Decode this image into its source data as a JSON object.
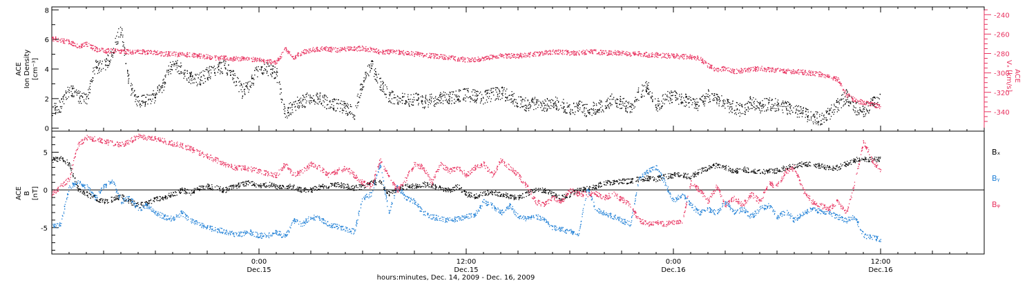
{
  "colors": {
    "black": "#000000",
    "pink": "#e8305e",
    "blue": "#1e7fd6",
    "axis": "#000000"
  },
  "footer": {
    "xlabel": "hours:minutes, Dec. 14, 2009 - Dec. 16, 2009",
    "ticks": [
      {
        "hour": 24,
        "time": "0:00",
        "date": "Dec.15"
      },
      {
        "hour": 36,
        "time": "12:00",
        "date": "Dec.15"
      },
      {
        "hour": 48,
        "time": "0:00",
        "date": "Dec.16"
      },
      {
        "hour": 60,
        "time": "12:00",
        "date": "Dec.16"
      }
    ]
  },
  "chart_data": [
    {
      "type": "scatter",
      "panel": "top",
      "xlim": [
        12.0,
        66.0
      ],
      "ylabel_left": [
        "ACE",
        "Ion Density",
        "[cm⁻³]"
      ],
      "ylabel_right": [
        "ACE",
        "Vₓ [km/s]"
      ],
      "ylim_left": [
        -0.2,
        8.2
      ],
      "ylim_right": [
        -360,
        -232
      ],
      "yticks_left": [
        "0",
        "2",
        "4",
        "6",
        "8"
      ],
      "yticks_right": [
        "-240",
        "-260",
        "-280",
        "-300",
        "-320",
        "-340"
      ],
      "grid": false,
      "series": [
        {
          "key": "density",
          "axis": "left",
          "color": "#000000",
          "x": [
            12.0,
            12.5,
            13.0,
            13.5,
            14.0,
            14.5,
            15.0,
            15.5,
            16.0,
            16.5,
            17.0,
            17.5,
            18.0,
            18.5,
            19.0,
            19.5,
            20.0,
            20.5,
            21.0,
            21.5,
            22.0,
            22.5,
            23.0,
            23.5,
            24.0,
            24.5,
            25.0,
            25.5,
            26.0,
            26.5,
            27.0,
            27.5,
            28.0,
            28.5,
            29.0,
            29.5,
            30.0,
            30.5,
            31.0,
            31.5,
            32.0,
            32.5,
            33.0,
            33.5,
            34.0,
            34.5,
            35.0,
            35.5,
            36.0,
            36.5,
            37.0,
            37.5,
            38.0,
            38.5,
            39.0,
            39.5,
            40.0,
            40.5,
            41.0,
            41.5,
            42.0,
            42.5,
            43.0,
            43.5,
            44.0,
            44.5,
            45.0,
            45.5,
            46.0,
            46.5,
            47.0,
            47.5,
            48.0,
            48.5,
            49.0,
            49.5,
            50.0,
            50.5,
            51.0,
            51.5,
            52.0,
            52.5,
            53.0,
            53.5,
            54.0,
            54.5,
            55.0,
            55.5,
            56.0,
            56.5,
            57.0,
            57.5,
            58.0,
            58.5,
            59.0,
            59.5,
            60.0
          ],
          "y": [
            1.2,
            1.5,
            2.6,
            2.2,
            2.0,
            4.2,
            4.1,
            5.2,
            6.8,
            2.8,
            1.8,
            1.9,
            2.2,
            3.1,
            4.5,
            4.0,
            3.4,
            3.3,
            3.7,
            4.0,
            4.2,
            3.6,
            2.5,
            3.0,
            4.2,
            4.0,
            3.7,
            1.0,
            1.6,
            1.8,
            2.1,
            2.0,
            1.7,
            1.6,
            1.4,
            1.0,
            3.2,
            4.3,
            3.0,
            2.2,
            2.0,
            1.9,
            2.0,
            1.8,
            1.9,
            2.0,
            2.1,
            2.2,
            2.3,
            2.2,
            2.1,
            2.3,
            2.4,
            2.2,
            1.8,
            1.6,
            1.7,
            1.5,
            1.8,
            1.6,
            1.3,
            1.5,
            1.2,
            1.4,
            1.6,
            2.0,
            1.7,
            1.4,
            2.4,
            2.8,
            1.5,
            2.0,
            2.2,
            2.0,
            1.8,
            1.6,
            2.2,
            2.0,
            1.6,
            1.4,
            1.2,
            1.8,
            1.5,
            1.7,
            1.6,
            1.4,
            1.2,
            1.0,
            0.8,
            0.6,
            1.0,
            1.6,
            2.2,
            1.4,
            1.2,
            1.7,
            2.1
          ]
        },
        {
          "key": "vx",
          "axis": "right",
          "color": "#e8305e",
          "x": [
            12.0,
            12.5,
            13.0,
            13.5,
            14.0,
            14.5,
            15.0,
            15.5,
            16.0,
            16.5,
            17.0,
            17.5,
            18.0,
            18.5,
            19.0,
            19.5,
            20.0,
            20.5,
            21.0,
            21.5,
            22.0,
            22.5,
            23.0,
            23.5,
            24.0,
            24.5,
            25.0,
            25.5,
            26.0,
            26.5,
            27.0,
            27.5,
            28.0,
            28.5,
            29.0,
            29.5,
            30.0,
            30.5,
            31.0,
            31.5,
            32.0,
            32.5,
            33.0,
            33.5,
            34.0,
            34.5,
            35.0,
            35.5,
            36.0,
            36.5,
            37.0,
            37.5,
            38.0,
            38.5,
            39.0,
            39.5,
            40.0,
            40.5,
            41.0,
            41.5,
            42.0,
            42.5,
            43.0,
            43.5,
            44.0,
            44.5,
            45.0,
            45.5,
            46.0,
            46.5,
            47.0,
            47.5,
            48.0,
            48.5,
            49.0,
            49.5,
            50.0,
            50.5,
            51.0,
            51.5,
            52.0,
            52.5,
            53.0,
            53.5,
            54.0,
            54.5,
            55.0,
            55.5,
            56.0,
            56.5,
            57.0,
            57.5,
            58.0,
            58.5,
            59.0,
            59.5,
            60.0
          ],
          "y": [
            -264,
            -266,
            -268,
            -272,
            -270,
            -275,
            -277,
            -277,
            -277,
            -278,
            -278,
            -278,
            -279,
            -280,
            -280,
            -281,
            -281,
            -282,
            -283,
            -284,
            -284,
            -285,
            -285,
            -286,
            -286,
            -288,
            -289,
            -275,
            -284,
            -278,
            -276,
            -275,
            -275,
            -276,
            -275,
            -275,
            -274,
            -276,
            -278,
            -278,
            -278,
            -279,
            -280,
            -281,
            -282,
            -283,
            -284,
            -285,
            -286,
            -286,
            -285,
            -283,
            -282,
            -282,
            -282,
            -281,
            -280,
            -279,
            -278,
            -278,
            -279,
            -279,
            -278,
            -278,
            -279,
            -279,
            -279,
            -280,
            -280,
            -281,
            -281,
            -282,
            -282,
            -283,
            -283,
            -285,
            -292,
            -297,
            -295,
            -298,
            -297,
            -296,
            -295,
            -296,
            -297,
            -298,
            -298,
            -299,
            -300,
            -301,
            -303,
            -306,
            -322,
            -328,
            -330,
            -332,
            -335
          ]
        }
      ]
    },
    {
      "type": "scatter",
      "panel": "bottom",
      "xlim": [
        12.0,
        66.0
      ],
      "ylabel_left": [
        "ACE",
        "B",
        "[nT]"
      ],
      "ylim": [
        -8.5,
        7.8
      ],
      "yticks": [
        "5",
        "0",
        "-5"
      ],
      "zero_line": true,
      "grid": false,
      "legend_position": "right",
      "series": [
        {
          "name": "Bₓ",
          "key": "bx",
          "color": "#000000",
          "x": [
            12.0,
            12.5,
            13.0,
            13.5,
            14.0,
            14.5,
            15.0,
            15.5,
            16.0,
            16.5,
            17.0,
            17.5,
            18.0,
            18.5,
            19.0,
            19.5,
            20.0,
            20.5,
            21.0,
            21.5,
            22.0,
            22.5,
            23.0,
            23.5,
            24.0,
            24.5,
            25.0,
            25.5,
            26.0,
            26.5,
            27.0,
            27.5,
            28.0,
            28.5,
            29.0,
            29.5,
            30.0,
            30.5,
            31.0,
            31.5,
            32.0,
            32.5,
            33.0,
            33.5,
            34.0,
            34.5,
            35.0,
            35.5,
            36.0,
            36.5,
            37.0,
            37.5,
            38.0,
            38.5,
            39.0,
            39.5,
            40.0,
            40.5,
            41.0,
            41.5,
            42.0,
            42.5,
            43.0,
            43.5,
            44.0,
            44.5,
            45.0,
            45.5,
            46.0,
            46.5,
            47.0,
            47.5,
            48.0,
            48.5,
            49.0,
            49.5,
            50.0,
            50.5,
            51.0,
            51.5,
            52.0,
            52.5,
            53.0,
            53.5,
            54.0,
            54.5,
            55.0,
            55.5,
            56.0,
            56.5,
            57.0,
            57.5,
            58.0,
            58.5,
            59.0,
            59.5,
            60.0
          ],
          "y": [
            4.0,
            4.2,
            3.5,
            0.2,
            -0.5,
            -1.0,
            -1.5,
            -1.2,
            -0.8,
            -1.5,
            -2.0,
            -1.8,
            -1.2,
            -1.0,
            -0.5,
            0.0,
            -0.3,
            0.2,
            0.5,
            0.3,
            0.0,
            0.5,
            0.8,
            1.0,
            0.6,
            0.8,
            0.5,
            0.6,
            0.4,
            0.0,
            0.0,
            0.4,
            0.6,
            0.8,
            0.5,
            0.3,
            0.5,
            1.2,
            1.0,
            -0.5,
            0.2,
            0.5,
            0.5,
            0.8,
            0.6,
            0.2,
            0.0,
            0.5,
            -0.5,
            -0.8,
            -0.4,
            -0.3,
            -0.5,
            -0.8,
            -1.0,
            -0.5,
            0.2,
            0.0,
            -0.5,
            -1.0,
            -0.6,
            0.0,
            0.3,
            0.5,
            1.0,
            1.0,
            1.2,
            1.2,
            1.5,
            1.6,
            1.5,
            1.8,
            2.0,
            2.0,
            1.8,
            2.5,
            3.0,
            3.3,
            3.0,
            2.5,
            2.8,
            2.6,
            2.5,
            2.5,
            2.6,
            3.0,
            3.2,
            3.5,
            3.5,
            3.2,
            3.0,
            3.0,
            3.5,
            4.0,
            4.2,
            4.0,
            4.2
          ]
        },
        {
          "name": "Bᵧ",
          "key": "by",
          "color": "#1e7fd6",
          "x": [
            12.0,
            12.5,
            13.0,
            13.5,
            14.0,
            14.5,
            15.0,
            15.5,
            16.0,
            16.5,
            17.0,
            17.5,
            18.0,
            18.5,
            19.0,
            19.5,
            20.0,
            20.5,
            21.0,
            21.5,
            22.0,
            22.5,
            23.0,
            23.5,
            24.0,
            24.5,
            25.0,
            25.5,
            26.0,
            26.5,
            27.0,
            27.5,
            28.0,
            28.5,
            29.0,
            29.5,
            30.0,
            30.5,
            31.0,
            31.5,
            32.0,
            32.5,
            33.0,
            33.5,
            34.0,
            34.5,
            35.0,
            35.5,
            36.0,
            36.5,
            37.0,
            37.5,
            38.0,
            38.5,
            39.0,
            39.5,
            40.0,
            40.5,
            41.0,
            41.5,
            42.0,
            42.5,
            43.0,
            43.5,
            44.0,
            44.5,
            45.0,
            45.5,
            46.0,
            46.5,
            47.0,
            47.5,
            48.0,
            48.5,
            49.0,
            49.5,
            50.0,
            50.5,
            51.0,
            51.5,
            52.0,
            52.5,
            53.0,
            53.5,
            54.0,
            54.5,
            55.0,
            55.5,
            56.0,
            56.5,
            57.0,
            57.5,
            58.0,
            58.5,
            59.0,
            59.5,
            60.0
          ],
          "y": [
            -4.8,
            -4.5,
            0.5,
            1.0,
            0.5,
            -1.0,
            0.5,
            1.2,
            -1.5,
            -1.0,
            -2.5,
            -2.0,
            -3.0,
            -3.5,
            -3.8,
            -3.0,
            -4.0,
            -4.5,
            -5.0,
            -5.2,
            -5.5,
            -5.8,
            -5.8,
            -5.6,
            -6.0,
            -6.0,
            -5.5,
            -6.2,
            -4.0,
            -4.5,
            -3.5,
            -3.8,
            -4.5,
            -4.8,
            -5.2,
            -5.5,
            -1.0,
            -0.5,
            3.5,
            -3.0,
            0.5,
            -1.0,
            -1.5,
            -3.0,
            -3.5,
            -3.8,
            -4.0,
            -3.8,
            -3.5,
            -3.2,
            -1.5,
            -2.0,
            -3.0,
            -2.0,
            -3.5,
            -3.8,
            -3.5,
            -3.8,
            -5.0,
            -5.2,
            -5.5,
            -5.8,
            0.3,
            -2.5,
            -3.0,
            -3.5,
            -4.0,
            -4.5,
            1.5,
            2.5,
            3.0,
            1.0,
            -1.5,
            -0.5,
            -2.0,
            -3.0,
            -2.5,
            -3.0,
            -1.5,
            -3.0,
            -2.5,
            -3.5,
            -2.5,
            -2.0,
            -3.5,
            -2.8,
            -4.0,
            -3.0,
            -2.5,
            -2.8,
            -3.0,
            -3.5,
            -4.0,
            -3.5,
            -6.0,
            -6.2,
            -6.5
          ]
        },
        {
          "name": "Bᵩ",
          "key": "bz",
          "color": "#e8305e",
          "x": [
            12.0,
            12.5,
            13.0,
            13.5,
            14.0,
            14.5,
            15.0,
            15.5,
            16.0,
            16.5,
            17.0,
            17.5,
            18.0,
            18.5,
            19.0,
            19.5,
            20.0,
            20.5,
            21.0,
            21.5,
            22.0,
            22.5,
            23.0,
            23.5,
            24.0,
            24.5,
            25.0,
            25.5,
            26.0,
            26.5,
            27.0,
            27.5,
            28.0,
            28.5,
            29.0,
            29.5,
            30.0,
            30.5,
            31.0,
            31.5,
            32.0,
            32.5,
            33.0,
            33.5,
            34.0,
            34.5,
            35.0,
            35.5,
            36.0,
            36.5,
            37.0,
            37.5,
            38.0,
            38.5,
            39.0,
            39.5,
            40.0,
            40.5,
            41.0,
            41.5,
            42.0,
            42.5,
            43.0,
            43.5,
            44.0,
            44.5,
            45.0,
            45.5,
            46.0,
            46.5,
            47.0,
            47.5,
            48.0,
            48.5,
            49.0,
            49.5,
            50.0,
            50.5,
            51.0,
            51.5,
            52.0,
            52.5,
            53.0,
            53.5,
            54.0,
            54.5,
            55.0,
            55.5,
            56.0,
            56.5,
            57.0,
            57.5,
            58.0,
            58.5,
            59.0,
            59.5,
            60.0
          ],
          "y": [
            -0.5,
            0.5,
            1.5,
            6.0,
            7.0,
            6.8,
            6.5,
            6.2,
            6.0,
            6.5,
            7.2,
            7.0,
            6.8,
            6.5,
            6.2,
            6.0,
            5.5,
            5.0,
            4.5,
            4.0,
            3.5,
            3.0,
            3.0,
            2.8,
            2.5,
            2.2,
            2.0,
            3.5,
            2.0,
            2.5,
            3.5,
            3.0,
            2.0,
            2.5,
            3.0,
            2.0,
            1.0,
            0.5,
            4.0,
            2.0,
            0.0,
            1.5,
            3.5,
            3.0,
            1.0,
            3.5,
            2.5,
            3.0,
            2.0,
            3.0,
            3.5,
            2.0,
            4.0,
            3.0,
            2.0,
            0.5,
            -1.5,
            -2.0,
            -1.0,
            -1.5,
            0.0,
            -0.5,
            -0.5,
            -0.5,
            -1.0,
            -0.5,
            -1.2,
            -2.0,
            -4.0,
            -4.5,
            -4.2,
            -4.5,
            -4.2,
            -4.0,
            1.0,
            0.0,
            -1.5,
            0.5,
            -2.0,
            -1.0,
            -2.0,
            -0.5,
            -1.5,
            1.0,
            0.5,
            2.5,
            3.0,
            0.0,
            -1.5,
            -2.0,
            -2.5,
            -1.5,
            -3.0,
            1.0,
            6.5,
            4.0,
            2.5
          ]
        }
      ]
    }
  ]
}
